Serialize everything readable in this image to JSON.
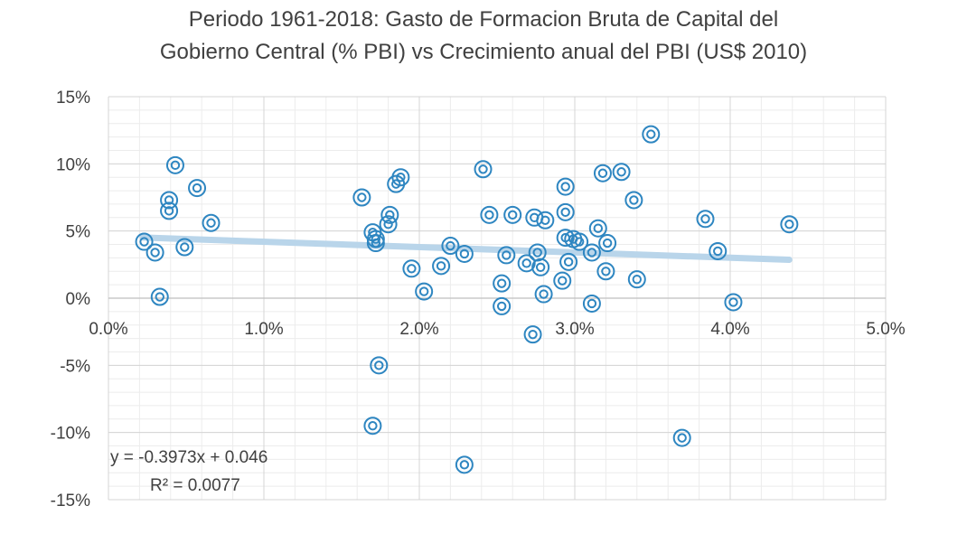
{
  "chart_data": {
    "type": "scatter",
    "title": [
      "Periodo 1961-2018: Gasto de Formacion Bruta de Capital del",
      "Gobierno Central (% PBI) vs Crecimiento anual del PBI (US$ 2010)"
    ],
    "xlim": [
      0,
      0.05
    ],
    "ylim": [
      -0.15,
      0.15
    ],
    "x_ticks": [
      0,
      0.01,
      0.02,
      0.03,
      0.04,
      0.05
    ],
    "x_tick_labels": [
      "0.0%",
      "1.0%",
      "2.0%",
      "3.0%",
      "4.0%",
      "5.0%"
    ],
    "y_ticks": [
      0.15,
      0.1,
      0.05,
      0,
      -0.05,
      -0.1,
      -0.15
    ],
    "y_tick_labels": [
      "15%",
      "10%",
      "5%",
      "0%",
      "-5%",
      "-10%",
      "-15%"
    ],
    "grid": true,
    "marker_color": "#2e86c1",
    "trendline": {
      "slope": -0.3973,
      "intercept": 0.046,
      "x_range": [
        0.0022,
        0.0438
      ],
      "color": "#b9d5ea"
    },
    "equation": "y = -0.3973x + 0.046",
    "r_squared": "R² = 0.0077",
    "points": [
      [
        0.0023,
        0.042
      ],
      [
        0.003,
        0.034
      ],
      [
        0.0033,
        0.001
      ],
      [
        0.0039,
        0.073
      ],
      [
        0.0039,
        0.065
      ],
      [
        0.0043,
        0.099
      ],
      [
        0.0049,
        0.038
      ],
      [
        0.0057,
        0.082
      ],
      [
        0.0066,
        0.056
      ],
      [
        0.0163,
        0.075
      ],
      [
        0.017,
        0.049
      ],
      [
        0.0172,
        0.044
      ],
      [
        0.0172,
        0.041
      ],
      [
        0.018,
        0.055
      ],
      [
        0.0181,
        0.062
      ],
      [
        0.0185,
        0.085
      ],
      [
        0.0188,
        0.09
      ],
      [
        0.0195,
        0.022
      ],
      [
        0.017,
        -0.095
      ],
      [
        0.0174,
        -0.05
      ],
      [
        0.0203,
        0.005
      ],
      [
        0.0214,
        0.024
      ],
      [
        0.022,
        0.039
      ],
      [
        0.0229,
        0.033
      ],
      [
        0.0229,
        -0.124
      ],
      [
        0.0241,
        0.096
      ],
      [
        0.0245,
        0.062
      ],
      [
        0.0253,
        0.011
      ],
      [
        0.0253,
        -0.006
      ],
      [
        0.0256,
        0.032
      ],
      [
        0.026,
        0.062
      ],
      [
        0.0269,
        0.026
      ],
      [
        0.0274,
        0.06
      ],
      [
        0.0273,
        -0.027
      ],
      [
        0.0276,
        0.034
      ],
      [
        0.0278,
        0.023
      ],
      [
        0.028,
        0.003
      ],
      [
        0.0281,
        0.058
      ],
      [
        0.0292,
        0.013
      ],
      [
        0.0294,
        0.083
      ],
      [
        0.0294,
        0.064
      ],
      [
        0.0294,
        0.045
      ],
      [
        0.0296,
        0.027
      ],
      [
        0.0299,
        0.044
      ],
      [
        0.0303,
        0.042
      ],
      [
        0.0311,
        0.034
      ],
      [
        0.0311,
        -0.004
      ],
      [
        0.0315,
        0.052
      ],
      [
        0.0318,
        0.093
      ],
      [
        0.032,
        0.02
      ],
      [
        0.0321,
        0.041
      ],
      [
        0.033,
        0.094
      ],
      [
        0.0338,
        0.073
      ],
      [
        0.034,
        0.014
      ],
      [
        0.0349,
        0.122
      ],
      [
        0.0369,
        -0.104
      ],
      [
        0.0384,
        0.059
      ],
      [
        0.0392,
        0.035
      ],
      [
        0.0402,
        -0.003
      ],
      [
        0.0438,
        0.055
      ]
    ]
  }
}
